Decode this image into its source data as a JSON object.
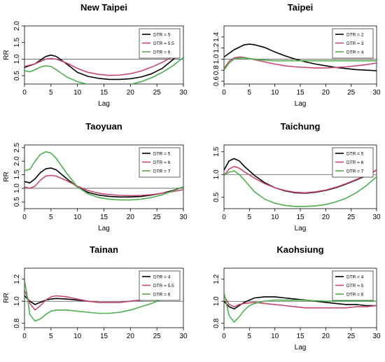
{
  "chart_data": [
    {
      "type": "line",
      "title": "New Taipei",
      "xlabel": "Lag",
      "ylabel": "RR",
      "xlim": [
        0,
        30
      ],
      "ylim": [
        0.25,
        2.0
      ],
      "xticks": [
        0,
        5,
        10,
        15,
        20,
        25,
        30
      ],
      "yticks": [
        0.5,
        1.0,
        1.5,
        2.0
      ],
      "ytick_labels": [
        "0.5",
        "1.0",
        "1.5",
        "2.0"
      ],
      "reference_line": 1,
      "legend": "top-right",
      "series": [
        {
          "name": "DTR = 5",
          "color": "#000000",
          "x": [
            0,
            2,
            4,
            5,
            6,
            8,
            10,
            12,
            14,
            16,
            18,
            20,
            22,
            24,
            26,
            28,
            29
          ],
          "y": [
            0.75,
            0.86,
            1.08,
            1.12,
            1.08,
            0.85,
            0.6,
            0.48,
            0.42,
            0.39,
            0.39,
            0.41,
            0.46,
            0.56,
            0.72,
            0.98,
            1.15
          ]
        },
        {
          "name": "DTR = 5.5",
          "color": "#c5496b",
          "x": [
            0,
            2,
            4,
            5,
            6,
            8,
            10,
            12,
            14,
            16,
            18,
            20,
            22,
            24,
            26,
            28,
            29
          ],
          "y": [
            0.78,
            0.86,
            1.0,
            1.02,
            1.0,
            0.88,
            0.72,
            0.6,
            0.54,
            0.51,
            0.52,
            0.56,
            0.64,
            0.76,
            0.9,
            1.08,
            1.18
          ]
        },
        {
          "name": "DTR = 6",
          "color": "#4caf50",
          "x": [
            0,
            1,
            2,
            3,
            4,
            5,
            6,
            8,
            10,
            12,
            14,
            16,
            18,
            20,
            22,
            24,
            26,
            28,
            30
          ],
          "y": [
            0.65,
            0.62,
            0.68,
            0.76,
            0.8,
            0.78,
            0.68,
            0.46,
            0.32,
            0.24,
            0.2,
            0.19,
            0.2,
            0.24,
            0.32,
            0.44,
            0.6,
            0.8,
            1.05
          ]
        }
      ]
    },
    {
      "type": "line",
      "title": "Taipei",
      "xlabel": "Lag",
      "ylabel": "",
      "xlim": [
        0,
        30
      ],
      "ylim": [
        0.55,
        1.6
      ],
      "xticks": [
        0,
        5,
        10,
        15,
        20,
        25,
        30
      ],
      "yticks": [
        0.6,
        0.8,
        1.0,
        1.2,
        1.4
      ],
      "ytick_labels": [
        "0.6",
        "0.8",
        "1.0",
        "1.2",
        "1.4"
      ],
      "reference_line": 1,
      "legend": "top-right",
      "series": [
        {
          "name": "DTR = 2",
          "color": "#000000",
          "x": [
            0,
            2,
            4,
            5,
            6,
            8,
            10,
            12,
            14,
            16,
            18,
            20,
            22,
            24,
            26,
            28,
            30
          ],
          "y": [
            1.04,
            1.17,
            1.26,
            1.27,
            1.26,
            1.21,
            1.13,
            1.06,
            1.0,
            0.95,
            0.91,
            0.88,
            0.85,
            0.83,
            0.81,
            0.8,
            0.79
          ]
        },
        {
          "name": "DTR = 3",
          "color": "#c5496b",
          "x": [
            0,
            1,
            2,
            3,
            4,
            6,
            8,
            10,
            12,
            14,
            16,
            18,
            20,
            22,
            24,
            26,
            28,
            30
          ],
          "y": [
            0.83,
            0.96,
            1.02,
            1.04,
            1.03,
            0.99,
            0.95,
            0.91,
            0.88,
            0.86,
            0.85,
            0.84,
            0.84,
            0.85,
            0.86,
            0.88,
            0.9,
            0.93
          ]
        },
        {
          "name": "DTR = 4",
          "color": "#4caf50",
          "x": [
            0,
            1,
            2,
            3,
            4,
            6,
            8,
            10,
            12,
            15,
            20,
            25,
            30
          ],
          "y": [
            0.8,
            0.93,
            1.0,
            1.02,
            1.02,
            1.0,
            0.98,
            0.97,
            0.97,
            0.97,
            0.97,
            0.97,
            0.97
          ]
        }
      ]
    },
    {
      "type": "line",
      "title": "Taoyuan",
      "xlabel": "Lag",
      "ylabel": "RR",
      "xlim": [
        0,
        30
      ],
      "ylim": [
        0.25,
        2.6
      ],
      "xticks": [
        0,
        5,
        10,
        15,
        20,
        25,
        30
      ],
      "yticks": [
        0.5,
        1.0,
        1.5,
        2.0,
        2.5
      ],
      "ytick_labels": [
        "0.5",
        "1.0",
        "1.5",
        "2.0",
        "2.5"
      ],
      "reference_line": 1,
      "legend": "top-right",
      "series": [
        {
          "name": "DTR = 5",
          "color": "#000000",
          "x": [
            0,
            1,
            2,
            3,
            4,
            5,
            6,
            8,
            10,
            12,
            14,
            16,
            18,
            20,
            22,
            24,
            26,
            28,
            30
          ],
          "y": [
            1.25,
            1.2,
            1.35,
            1.58,
            1.72,
            1.75,
            1.68,
            1.35,
            1.05,
            0.85,
            0.75,
            0.7,
            0.68,
            0.68,
            0.7,
            0.75,
            0.82,
            0.92,
            1.05
          ]
        },
        {
          "name": "DTR = 6",
          "color": "#c5496b",
          "x": [
            0,
            1,
            2,
            3,
            4,
            5,
            6,
            8,
            10,
            12,
            14,
            16,
            18,
            20,
            22,
            24,
            26,
            28,
            30
          ],
          "y": [
            1.05,
            1.0,
            1.08,
            1.3,
            1.45,
            1.48,
            1.45,
            1.28,
            1.08,
            0.92,
            0.82,
            0.77,
            0.74,
            0.73,
            0.74,
            0.77,
            0.82,
            0.88,
            0.95
          ]
        },
        {
          "name": "DTR = 7",
          "color": "#4caf50",
          "x": [
            0,
            1,
            2,
            3,
            4,
            5,
            6,
            8,
            10,
            12,
            14,
            16,
            18,
            20,
            22,
            24,
            26,
            28,
            30
          ],
          "y": [
            1.65,
            1.7,
            2.0,
            2.25,
            2.35,
            2.3,
            2.1,
            1.55,
            1.05,
            0.8,
            0.66,
            0.6,
            0.57,
            0.57,
            0.6,
            0.66,
            0.76,
            0.9,
            1.05
          ]
        }
      ]
    },
    {
      "type": "line",
      "title": "Taichung",
      "xlabel": "Lag",
      "ylabel": "",
      "xlim": [
        0,
        30
      ],
      "ylim": [
        0.25,
        1.65
      ],
      "xticks": [
        0,
        5,
        10,
        15,
        20,
        25,
        30
      ],
      "yticks": [
        0.5,
        1.0,
        1.5
      ],
      "ytick_labels": [
        "0.5",
        "1.0",
        "1.5"
      ],
      "reference_line": 1,
      "legend": "top-right",
      "series": [
        {
          "name": "DTR = 5",
          "color": "#000000",
          "x": [
            0,
            1,
            2,
            3,
            4,
            6,
            8,
            10,
            12,
            14,
            16,
            18,
            20,
            22,
            24,
            26,
            28,
            30
          ],
          "y": [
            1.1,
            1.3,
            1.35,
            1.3,
            1.18,
            0.98,
            0.82,
            0.71,
            0.64,
            0.6,
            0.59,
            0.61,
            0.65,
            0.71,
            0.79,
            0.88,
            0.98,
            1.1
          ]
        },
        {
          "name": "DTR = 6",
          "color": "#c5496b",
          "x": [
            0,
            1,
            2,
            3,
            4,
            6,
            8,
            10,
            12,
            14,
            16,
            18,
            20,
            22,
            24,
            26,
            28,
            30
          ],
          "y": [
            0.98,
            1.12,
            1.18,
            1.14,
            1.06,
            0.92,
            0.8,
            0.71,
            0.65,
            0.61,
            0.6,
            0.62,
            0.66,
            0.72,
            0.8,
            0.89,
            0.99,
            1.1
          ]
        },
        {
          "name": "DTR = 7",
          "color": "#4caf50",
          "x": [
            0,
            1,
            2,
            3,
            4,
            6,
            8,
            10,
            12,
            14,
            16,
            18,
            20,
            22,
            24,
            26,
            28,
            30
          ],
          "y": [
            0.98,
            1.05,
            1.08,
            1.0,
            0.88,
            0.62,
            0.46,
            0.37,
            0.32,
            0.3,
            0.3,
            0.31,
            0.34,
            0.4,
            0.48,
            0.6,
            0.76,
            0.95
          ]
        }
      ]
    },
    {
      "type": "line",
      "title": "Tainan",
      "xlabel": "",
      "ylabel": "RR",
      "xlim": [
        0,
        30
      ],
      "ylim": [
        0.76,
        1.3
      ],
      "xticks": [
        0,
        5,
        10,
        15,
        20,
        25,
        30
      ],
      "yticks": [
        0.8,
        1.0,
        1.2
      ],
      "ytick_labels": [
        "0.8",
        "1.0",
        "1.2"
      ],
      "reference_line": 1,
      "legend": "top-right",
      "series": [
        {
          "name": "DTR = 4",
          "color": "#000000",
          "x": [
            0,
            1,
            2,
            3,
            4,
            5,
            6,
            8,
            10,
            12,
            14,
            16,
            18,
            20,
            22,
            24,
            26,
            28
          ],
          "y": [
            1.05,
            1.0,
            0.97,
            0.99,
            1.01,
            1.02,
            1.025,
            1.02,
            1.01,
            1.0,
            0.99,
            0.99,
            0.99,
            1.0,
            1.01,
            1.025,
            1.04,
            1.06
          ]
        },
        {
          "name": "DTR = 5.5",
          "color": "#c5496b",
          "x": [
            0,
            1,
            2,
            3,
            4,
            5,
            6,
            8,
            10,
            12,
            14,
            16,
            18,
            20,
            22,
            24,
            26,
            28
          ],
          "y": [
            1.1,
            0.98,
            0.92,
            0.96,
            1.01,
            1.04,
            1.05,
            1.04,
            1.02,
            1.0,
            0.99,
            0.99,
            0.99,
            1.0,
            1.01,
            1.03,
            1.05,
            1.06
          ]
        },
        {
          "name": "DTR = 6",
          "color": "#4caf50",
          "x": [
            0,
            0.5,
            1,
            2,
            3,
            4,
            5,
            6,
            8,
            10,
            12,
            14,
            16,
            18,
            20,
            22,
            24,
            26,
            28
          ],
          "y": [
            1.19,
            1.05,
            0.88,
            0.82,
            0.84,
            0.88,
            0.91,
            0.92,
            0.92,
            0.91,
            0.9,
            0.89,
            0.89,
            0.9,
            0.92,
            0.95,
            0.98,
            1.02,
            1.06
          ]
        }
      ]
    },
    {
      "type": "line",
      "title": "Kaohsiung",
      "xlabel": "Lag",
      "ylabel": "",
      "xlim": [
        0,
        30
      ],
      "ylim": [
        0.76,
        1.3
      ],
      "xticks": [
        0,
        5,
        10,
        15,
        20,
        25,
        30
      ],
      "yticks": [
        0.8,
        1.0,
        1.2
      ],
      "ytick_labels": [
        "0.8",
        "1.0",
        "1.2"
      ],
      "reference_line": 1,
      "legend": "top-right",
      "series": [
        {
          "name": "DTR = 4",
          "color": "#000000",
          "x": [
            0,
            1,
            2,
            3,
            4,
            6,
            8,
            10,
            12,
            14,
            16,
            18,
            20,
            22,
            24,
            26,
            28,
            30
          ],
          "y": [
            1.0,
            0.95,
            0.93,
            0.96,
            0.99,
            1.03,
            1.04,
            1.04,
            1.03,
            1.02,
            1.01,
            1.0,
            0.99,
            0.98,
            0.97,
            0.97,
            0.96,
            0.96
          ]
        },
        {
          "name": "DTR = 5",
          "color": "#c5496b",
          "x": [
            0,
            1,
            2,
            3,
            4,
            6,
            8,
            10,
            12,
            14,
            16,
            18,
            20,
            22,
            24,
            26,
            28,
            30
          ],
          "y": [
            1.05,
            0.97,
            0.95,
            0.97,
            0.98,
            0.99,
            0.98,
            0.97,
            0.96,
            0.95,
            0.94,
            0.94,
            0.94,
            0.94,
            0.94,
            0.95,
            0.95,
            0.96
          ]
        },
        {
          "name": "DTR = 6",
          "color": "#4caf50",
          "x": [
            0,
            1,
            2,
            3,
            4,
            5,
            6,
            8,
            10,
            12,
            15,
            20,
            25,
            30
          ],
          "y": [
            1.08,
            0.87,
            0.81,
            0.86,
            0.92,
            0.96,
            0.98,
            1.0,
            1.01,
            1.01,
            1.01,
            1.0,
            1.0,
            1.0
          ]
        }
      ]
    }
  ]
}
